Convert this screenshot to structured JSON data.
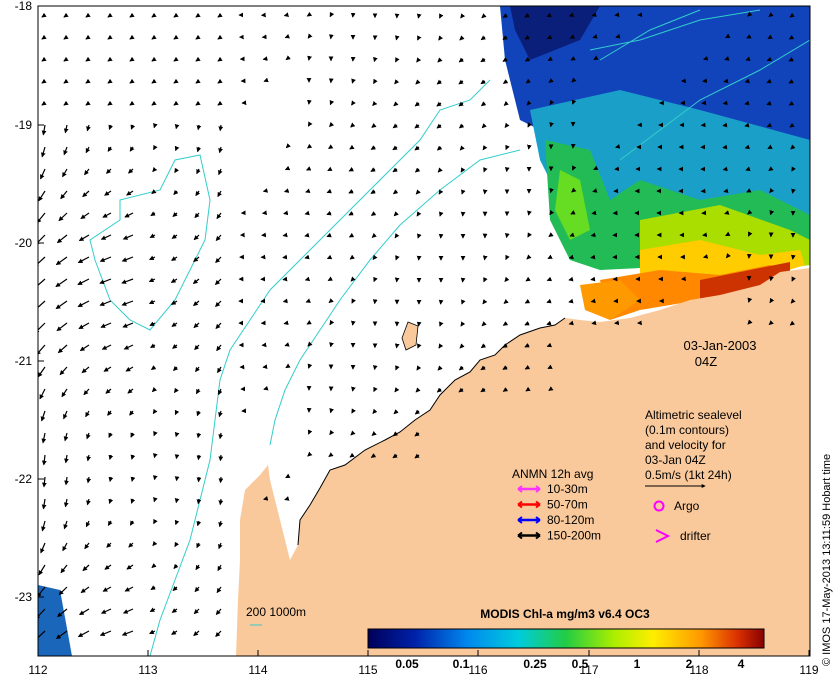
{
  "map": {
    "x_ticks": [
      "112",
      "113",
      "114",
      "115",
      "116",
      "117",
      "118",
      "119"
    ],
    "y_ticks": [
      "-18",
      "-19",
      "-20",
      "-21",
      "-22",
      "-23"
    ],
    "date_label": "03-Jan-2003",
    "time_label": "04Z",
    "sealevel_note": [
      "Altimetric sealevel",
      "(0.1m contours)",
      "and velocity for",
      "03-Jan 04Z",
      "0.5m/s (1kt 24h)"
    ],
    "anmn_title": "ANMN 12h avg",
    "anmn_legend": [
      {
        "label": "10-30m",
        "color": "#ff33ff"
      },
      {
        "label": "50-70m",
        "color": "#ff0000"
      },
      {
        "label": "80-120m",
        "color": "#0000ff"
      },
      {
        "label": "150-200m",
        "color": "#000000"
      }
    ],
    "argo_label": "Argo",
    "drifter_label": "drifter",
    "bathy_label": "200  1000m",
    "colorbar_title": "MODIS Chl-a mg/m3 v6.4 OC3",
    "colorbar_ticks": [
      "0.05",
      "0.1",
      "0.25",
      "0.5",
      "1",
      "2",
      "4"
    ],
    "credit": "© IMOS 17-May-2013 13:11:59 Hobart time",
    "colors": {
      "land": "#f9c99b",
      "ocean": "#ffffff",
      "contour": "#33cccc",
      "argo": "#ff00ff"
    }
  }
}
